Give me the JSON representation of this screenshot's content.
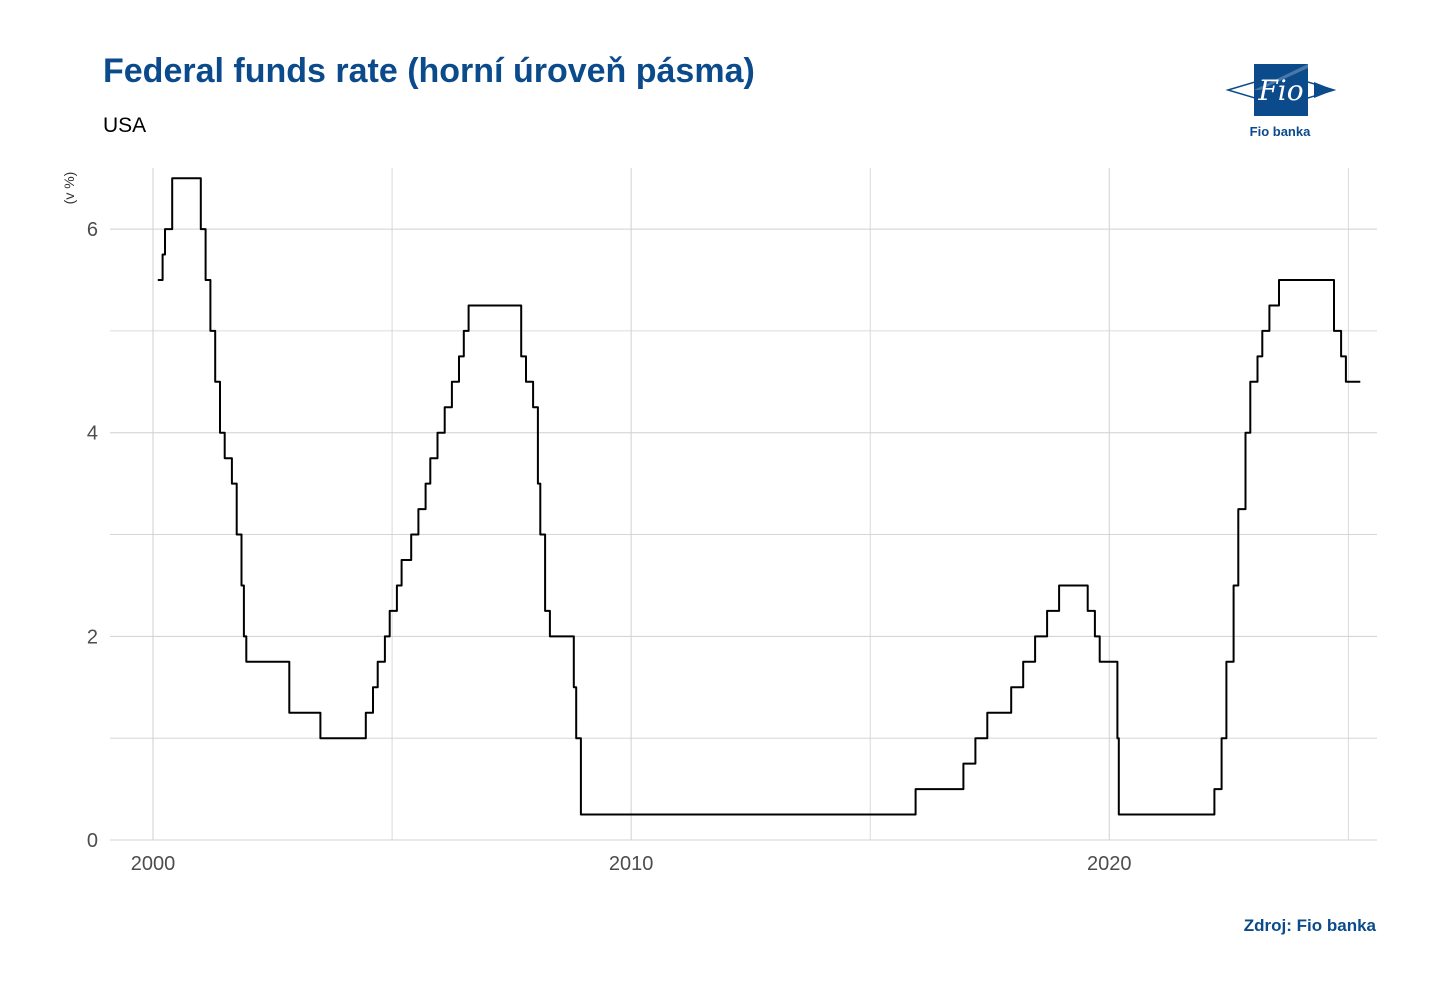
{
  "header": {
    "title": "Federal funds rate (horní úroveň pásma)",
    "subtitle": "USA"
  },
  "footer": {
    "caption": "Zdroj: Fio banka"
  },
  "logo": {
    "mark_text": "Fio",
    "label": "Fio banka",
    "color": "#0b4a8b"
  },
  "colors": {
    "title": "#0b4a8b",
    "line": "#000000",
    "grid": "#d0d0d0",
    "tick_text": "#4d4d4d"
  },
  "chart_data": {
    "type": "line",
    "title": "Federal funds rate (horní úroveň pásma)",
    "subtitle": "USA",
    "ylabel": "(v %)",
    "xlabel": "",
    "xlim": [
      1999.1,
      2025.6
    ],
    "ylim": [
      0,
      6.6
    ],
    "x_ticks": [
      2000,
      2010,
      2020
    ],
    "y_ticks": [
      0,
      2,
      4,
      6
    ],
    "grid": true,
    "step": true,
    "series": [
      {
        "values": [
          [
            2000.1,
            5.5
          ],
          [
            2000.2,
            5.75
          ],
          [
            2000.25,
            6.0
          ],
          [
            2000.4,
            6.5
          ],
          [
            2001.0,
            6.0
          ],
          [
            2001.1,
            5.5
          ],
          [
            2001.2,
            5.0
          ],
          [
            2001.3,
            4.5
          ],
          [
            2001.4,
            4.0
          ],
          [
            2001.5,
            3.75
          ],
          [
            2001.65,
            3.5
          ],
          [
            2001.75,
            3.0
          ],
          [
            2001.85,
            2.5
          ],
          [
            2001.9,
            2.0
          ],
          [
            2001.95,
            1.75
          ],
          [
            2002.85,
            1.25
          ],
          [
            2003.5,
            1.0
          ],
          [
            2004.45,
            1.25
          ],
          [
            2004.6,
            1.5
          ],
          [
            2004.7,
            1.75
          ],
          [
            2004.85,
            2.0
          ],
          [
            2004.95,
            2.25
          ],
          [
            2005.1,
            2.5
          ],
          [
            2005.2,
            2.75
          ],
          [
            2005.4,
            3.0
          ],
          [
            2005.55,
            3.25
          ],
          [
            2005.7,
            3.5
          ],
          [
            2005.8,
            3.75
          ],
          [
            2005.95,
            4.0
          ],
          [
            2006.1,
            4.25
          ],
          [
            2006.25,
            4.5
          ],
          [
            2006.4,
            4.75
          ],
          [
            2006.5,
            5.0
          ],
          [
            2006.6,
            5.25
          ],
          [
            2007.7,
            4.75
          ],
          [
            2007.8,
            4.5
          ],
          [
            2007.95,
            4.25
          ],
          [
            2008.05,
            3.5
          ],
          [
            2008.1,
            3.0
          ],
          [
            2008.2,
            2.25
          ],
          [
            2008.3,
            2.0
          ],
          [
            2008.8,
            1.5
          ],
          [
            2008.85,
            1.0
          ],
          [
            2008.95,
            0.25
          ],
          [
            2015.95,
            0.5
          ],
          [
            2016.95,
            0.75
          ],
          [
            2017.2,
            1.0
          ],
          [
            2017.45,
            1.25
          ],
          [
            2017.95,
            1.5
          ],
          [
            2018.2,
            1.75
          ],
          [
            2018.45,
            2.0
          ],
          [
            2018.7,
            2.25
          ],
          [
            2018.95,
            2.5
          ],
          [
            2019.55,
            2.25
          ],
          [
            2019.7,
            2.0
          ],
          [
            2019.8,
            1.75
          ],
          [
            2020.17,
            1.0
          ],
          [
            2020.2,
            0.25
          ],
          [
            2022.2,
            0.5
          ],
          [
            2022.35,
            1.0
          ],
          [
            2022.45,
            1.75
          ],
          [
            2022.6,
            2.5
          ],
          [
            2022.7,
            3.25
          ],
          [
            2022.85,
            4.0
          ],
          [
            2022.95,
            4.5
          ],
          [
            2023.1,
            4.75
          ],
          [
            2023.2,
            5.0
          ],
          [
            2023.35,
            5.25
          ],
          [
            2023.55,
            5.5
          ],
          [
            2024.7,
            5.0
          ],
          [
            2024.85,
            4.75
          ],
          [
            2024.95,
            4.5
          ],
          [
            2025.25,
            4.5
          ]
        ]
      }
    ]
  }
}
